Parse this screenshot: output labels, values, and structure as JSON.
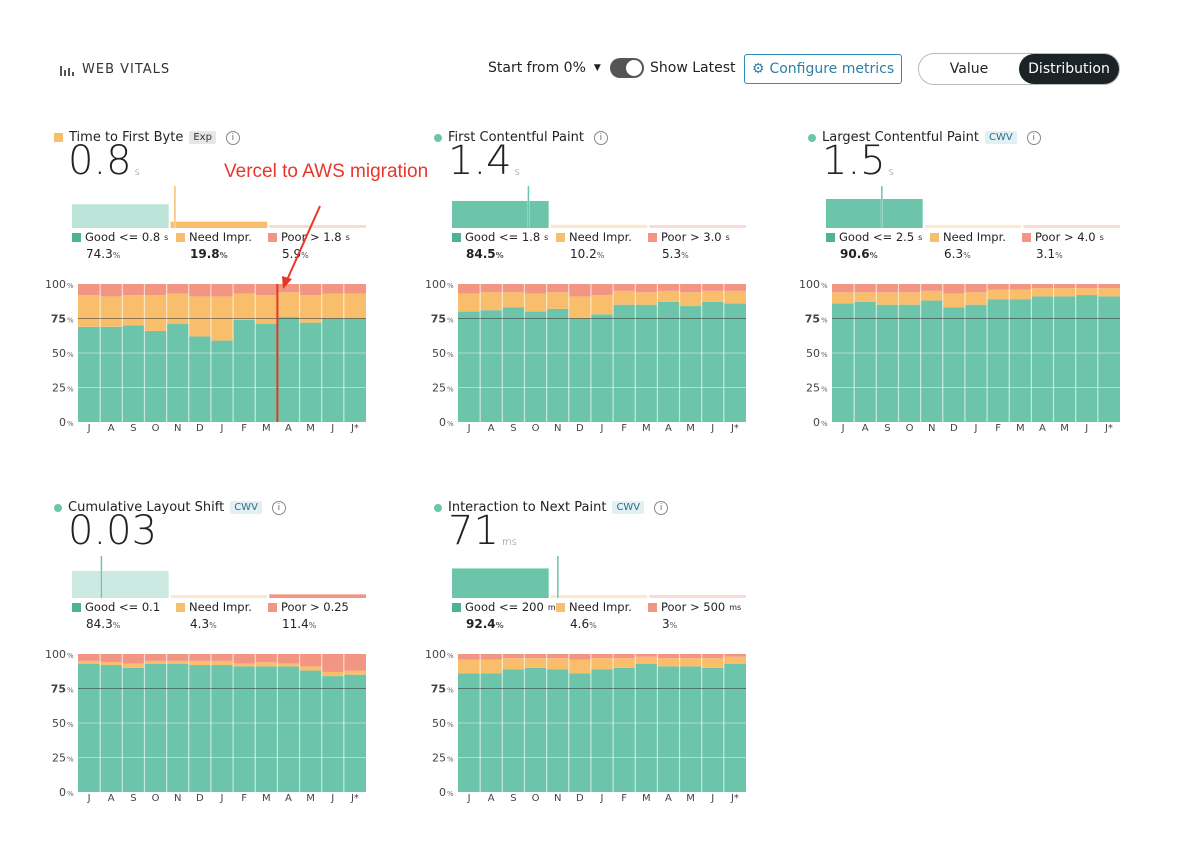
{
  "header": {
    "brand_label": "WEB VITALS",
    "brand_icon": "bars-icon",
    "start_from_label": "Start from 0%",
    "show_latest_label": "Show Latest",
    "show_latest_on": true,
    "configure_label": "Configure metrics",
    "configure_icon": "gear-icon",
    "view_options": [
      "Value",
      "Distribution"
    ],
    "view_selected": "Distribution"
  },
  "colors": {
    "good": "#6cc4aa",
    "good_dark": "#4db397",
    "need": "#f9be6c",
    "poor": "#f29582",
    "ref_line": "#333333",
    "annotation": "#e8362b"
  },
  "annotation": {
    "text": "Vercel to AWS migration"
  },
  "chart_data": [
    {
      "id": "ttfb",
      "type": "bar",
      "stacked": true,
      "title": "Time to First Byte",
      "badge": "Exp",
      "status": "need",
      "value": "0.8",
      "unit": "s",
      "legend": [
        {
          "label": "Good <= 0.8",
          "unit": "s",
          "pct": "74.3",
          "pct_unit": "%"
        },
        {
          "label": "Need Impr.",
          "unit": "",
          "pct": "19.8",
          "pct_unit": "%"
        },
        {
          "label": "Poor > 1.8",
          "unit": "s",
          "pct": "5.9",
          "pct_unit": "%"
        }
      ],
      "highlight": "need",
      "marker_fraction": 0.35,
      "categories": [
        "J",
        "A",
        "S",
        "O",
        "N",
        "D",
        "J",
        "F",
        "M",
        "A",
        "M",
        "J",
        "J*"
      ],
      "y_ticks": [
        {
          "label": "100",
          "unit": "%"
        },
        {
          "label": "75",
          "unit": "%"
        },
        {
          "label": "50",
          "unit": "%"
        },
        {
          "label": "25",
          "unit": "%"
        },
        {
          "label": "0",
          "unit": "%"
        }
      ],
      "ylim": [
        0,
        100
      ],
      "reference": 75,
      "annotation_index": 9,
      "series": [
        {
          "name": "Good",
          "values": [
            69,
            69,
            70,
            66,
            71,
            62,
            59,
            74,
            71,
            76,
            72,
            75,
            75
          ]
        },
        {
          "name": "Need Impr.",
          "values": [
            23,
            22,
            22,
            26,
            22,
            29,
            32,
            19,
            21,
            18,
            20,
            18,
            18
          ]
        },
        {
          "name": "Poor",
          "values": [
            8,
            9,
            8,
            8,
            7,
            9,
            9,
            7,
            8,
            6,
            8,
            7,
            7
          ]
        }
      ]
    },
    {
      "id": "fcp",
      "type": "bar",
      "stacked": true,
      "title": "First Contentful Paint",
      "badge": "",
      "status": "good",
      "value": "1.4",
      "unit": "s",
      "legend": [
        {
          "label": "Good <= 1.8",
          "unit": "s",
          "pct": "84.5",
          "pct_unit": "%"
        },
        {
          "label": "Need Impr.",
          "unit": "",
          "pct": "10.2",
          "pct_unit": "%"
        },
        {
          "label": "Poor > 3.0",
          "unit": "s",
          "pct": "5.3",
          "pct_unit": "%"
        }
      ],
      "highlight": "good",
      "marker_fraction": 0.26,
      "categories": [
        "J",
        "A",
        "S",
        "O",
        "N",
        "D",
        "J",
        "F",
        "M",
        "A",
        "M",
        "J",
        "J*"
      ],
      "y_ticks": [
        {
          "label": "100",
          "unit": "%"
        },
        {
          "label": "75",
          "unit": "%"
        },
        {
          "label": "50",
          "unit": "%"
        },
        {
          "label": "25",
          "unit": "%"
        },
        {
          "label": "0",
          "unit": "%"
        }
      ],
      "ylim": [
        0,
        100
      ],
      "reference": 75,
      "series": [
        {
          "name": "Good",
          "values": [
            80,
            81,
            83,
            80,
            82,
            75,
            78,
            85,
            85,
            87,
            84,
            87,
            86
          ]
        },
        {
          "name": "Need Impr.",
          "values": [
            13,
            13,
            11,
            13,
            12,
            16,
            14,
            10,
            9,
            8,
            10,
            8,
            9
          ]
        },
        {
          "name": "Poor",
          "values": [
            7,
            6,
            6,
            7,
            6,
            9,
            8,
            5,
            6,
            5,
            6,
            5,
            5
          ]
        }
      ]
    },
    {
      "id": "lcp",
      "type": "bar",
      "stacked": true,
      "title": "Largest Contentful Paint",
      "badge": "CWV",
      "status": "good",
      "value": "1.5",
      "unit": "s",
      "legend": [
        {
          "label": "Good <= 2.5",
          "unit": "s",
          "pct": "90.6",
          "pct_unit": "%"
        },
        {
          "label": "Need Impr.",
          "unit": "",
          "pct": "6.3",
          "pct_unit": "%"
        },
        {
          "label": "Poor > 4.0",
          "unit": "s",
          "pct": "3.1",
          "pct_unit": "%"
        }
      ],
      "highlight": "good",
      "marker_fraction": 0.19,
      "categories": [
        "J",
        "A",
        "S",
        "O",
        "N",
        "D",
        "J",
        "F",
        "M",
        "A",
        "M",
        "J",
        "J*"
      ],
      "y_ticks": [
        {
          "label": "100",
          "unit": "%"
        },
        {
          "label": "75",
          "unit": "%"
        },
        {
          "label": "50",
          "unit": "%"
        },
        {
          "label": "25",
          "unit": "%"
        },
        {
          "label": "0",
          "unit": "%"
        }
      ],
      "ylim": [
        0,
        100
      ],
      "reference": 75,
      "series": [
        {
          "name": "Good",
          "values": [
            86,
            87,
            85,
            85,
            88,
            83,
            85,
            89,
            89,
            91,
            91,
            92,
            91
          ]
        },
        {
          "name": "Need Impr.",
          "values": [
            8,
            7,
            9,
            9,
            7,
            10,
            9,
            7,
            7,
            6,
            6,
            5,
            6
          ]
        },
        {
          "name": "Poor",
          "values": [
            6,
            6,
            6,
            6,
            5,
            7,
            6,
            4,
            4,
            3,
            3,
            3,
            3
          ]
        }
      ]
    },
    {
      "id": "cls",
      "type": "bar",
      "stacked": true,
      "title": "Cumulative Layout Shift",
      "badge": "CWV",
      "status": "good",
      "value": "0.03",
      "unit": "",
      "legend": [
        {
          "label": "Good <= 0.1",
          "unit": "",
          "pct": "84.3",
          "pct_unit": "%"
        },
        {
          "label": "Need Impr.",
          "unit": "",
          "pct": "4.3",
          "pct_unit": "%"
        },
        {
          "label": "Poor > 0.25",
          "unit": "",
          "pct": "11.4",
          "pct_unit": "%"
        }
      ],
      "highlight": "poor",
      "marker_fraction": 0.1,
      "categories": [
        "J",
        "A",
        "S",
        "O",
        "N",
        "D",
        "J",
        "F",
        "M",
        "A",
        "M",
        "J",
        "J*"
      ],
      "y_ticks": [
        {
          "label": "100",
          "unit": "%"
        },
        {
          "label": "75",
          "unit": "%"
        },
        {
          "label": "50",
          "unit": "%"
        },
        {
          "label": "25",
          "unit": "%"
        },
        {
          "label": "0",
          "unit": "%"
        }
      ],
      "ylim": [
        0,
        100
      ],
      "reference": 75,
      "series": [
        {
          "name": "Good",
          "values": [
            93,
            92,
            90,
            93,
            93,
            92,
            92,
            91,
            91,
            91,
            88,
            84,
            85
          ]
        },
        {
          "name": "Need Impr.",
          "values": [
            2,
            2,
            3,
            2,
            2,
            3,
            3,
            2,
            3,
            2,
            3,
            3,
            3
          ]
        },
        {
          "name": "Poor",
          "values": [
            5,
            6,
            7,
            5,
            5,
            5,
            5,
            7,
            6,
            7,
            9,
            13,
            12
          ]
        }
      ]
    },
    {
      "id": "inp",
      "type": "bar",
      "stacked": true,
      "title": "Interaction to Next Paint",
      "badge": "CWV",
      "status": "good",
      "value": "71",
      "unit": "ms",
      "legend": [
        {
          "label": "Good <= 200",
          "unit": "ms",
          "pct": "92.4",
          "pct_unit": "%"
        },
        {
          "label": "Need Impr.",
          "unit": "",
          "pct": "4.6",
          "pct_unit": "%"
        },
        {
          "label": "Poor > 500",
          "unit": "ms",
          "pct": "3",
          "pct_unit": "%"
        }
      ],
      "highlight": "good",
      "marker_fraction": 0.36,
      "categories": [
        "J",
        "A",
        "S",
        "O",
        "N",
        "D",
        "J",
        "F",
        "M",
        "A",
        "M",
        "J",
        "J*"
      ],
      "y_ticks": [
        {
          "label": "100",
          "unit": "%"
        },
        {
          "label": "75",
          "unit": "%"
        },
        {
          "label": "50",
          "unit": "%"
        },
        {
          "label": "25",
          "unit": "%"
        },
        {
          "label": "0",
          "unit": "%"
        }
      ],
      "ylim": [
        0,
        100
      ],
      "reference": 75,
      "series": [
        {
          "name": "Good",
          "values": [
            86,
            86,
            89,
            90,
            89,
            86,
            89,
            90,
            93,
            91,
            91,
            90,
            93
          ]
        },
        {
          "name": "Need Impr.",
          "values": [
            10,
            10,
            8,
            7,
            8,
            10,
            8,
            7,
            5,
            6,
            6,
            7,
            5
          ]
        },
        {
          "name": "Poor",
          "values": [
            4,
            4,
            3,
            3,
            3,
            4,
            3,
            3,
            2,
            3,
            3,
            3,
            2
          ]
        }
      ]
    }
  ]
}
